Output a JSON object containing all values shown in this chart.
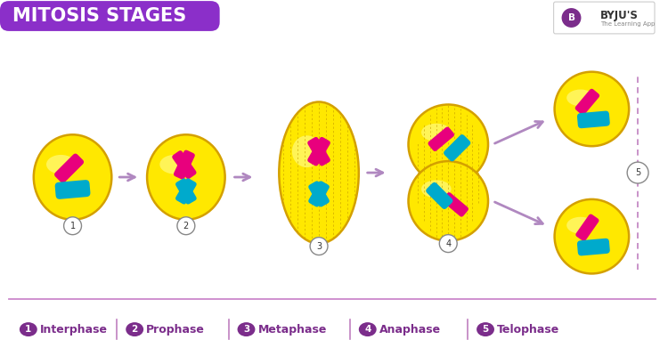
{
  "title": "MITOSIS STAGES",
  "title_bg_color": "#8B2FC9",
  "title_text_color": "#FFFFFF",
  "bg_color": "#FFFFFF",
  "cell_color": "#FFE800",
  "cell_outline": "#D4A000",
  "chrom_pink": "#E8007D",
  "chrom_blue": "#00AACC",
  "arrow_color": "#B088C0",
  "number_bg": "#7B2D8B",
  "number_text": "#FFFFFF",
  "label_color": "#7B2D8B",
  "separator_color": "#C080C0",
  "stages": [
    "Interphase",
    "Prophase",
    "Metaphase",
    "Anaphase",
    "Telophase"
  ],
  "bottom_line_color": "#CC88CC"
}
